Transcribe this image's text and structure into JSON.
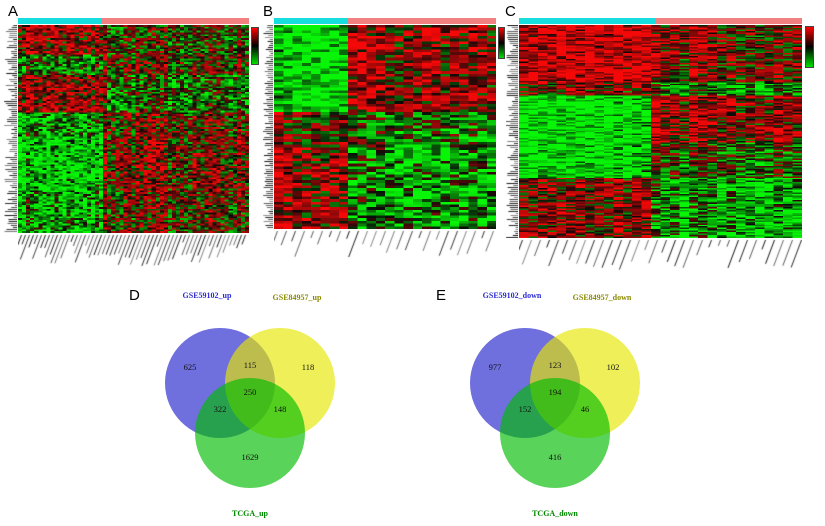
{
  "figure": {
    "background": "#ffffff"
  },
  "chart_data": [
    {
      "panel": "A",
      "type": "heatmap",
      "colors": {
        "up": "#ff0000",
        "zero": "#000000",
        "down": "#00e000",
        "group1_bar": "#17dede",
        "group2_bar": "#f28080"
      },
      "column_groups": {
        "group1_fraction": 0.36
      },
      "grid": {
        "rows": 112,
        "cols": 57
      },
      "row_blocks": [
        {
          "height_fraction": 0.14,
          "group1_bias": 0.45,
          "group2_bias": -0.05
        },
        {
          "height_fraction": 0.1,
          "group1_bias": -0.25,
          "group2_bias": 0.15
        },
        {
          "height_fraction": 0.18,
          "group1_bias": 0.5,
          "group2_bias": -0.2
        },
        {
          "height_fraction": 0.12,
          "group1_bias": -0.45,
          "group2_bias": 0.2
        },
        {
          "height_fraction": 0.26,
          "group1_bias": -0.7,
          "group2_bias": 0.3
        },
        {
          "height_fraction": 0.2,
          "group1_bias": -0.5,
          "group2_bias": 0.15
        }
      ]
    },
    {
      "panel": "B",
      "type": "heatmap",
      "colors": {
        "up": "#ff0000",
        "zero": "#000000",
        "down": "#00e000",
        "group1_bar": "#17dede",
        "group2_bar": "#f28080"
      },
      "column_groups": {
        "group1_fraction": 0.33
      },
      "grid": {
        "rows": 75,
        "cols": 24
      },
      "row_blocks": [
        {
          "height_fraction": 0.42,
          "group1_bias": -0.75,
          "group2_bias": 0.45
        },
        {
          "height_fraction": 0.18,
          "group1_bias": 0.35,
          "group2_bias": -0.3
        },
        {
          "height_fraction": 0.4,
          "group1_bias": 0.6,
          "group2_bias": -0.45
        }
      ]
    },
    {
      "panel": "C",
      "type": "heatmap",
      "colors": {
        "up": "#ff0000",
        "zero": "#000000",
        "down": "#00e000",
        "group1_bar": "#17dede",
        "group2_bar": "#f28080"
      },
      "column_groups": {
        "group1_fraction": 0.48
      },
      "grid": {
        "rows": 145,
        "cols": 30
      },
      "row_blocks": [
        {
          "height_fraction": 0.27,
          "group1_bias": 0.85,
          "group2_bias": 0.3
        },
        {
          "height_fraction": 0.06,
          "group1_bias": 0.4,
          "group2_bias": -0.4
        },
        {
          "height_fraction": 0.22,
          "group1_bias": -0.9,
          "group2_bias": 0.45
        },
        {
          "height_fraction": 0.17,
          "group1_bias": -0.8,
          "group2_bias": -0.1
        },
        {
          "height_fraction": 0.28,
          "group1_bias": 0.45,
          "group2_bias": -0.55
        }
      ]
    },
    {
      "panel": "D",
      "type": "venn",
      "sets": [
        {
          "name": "GSE59102_up",
          "label_color": "#2a2ad4",
          "fill": "#2222cc"
        },
        {
          "name": "GSE84957_up",
          "label_color": "#8a8a00",
          "fill": "#e6e600"
        },
        {
          "name": "TCGA_up",
          "label_color": "#008800",
          "fill": "#00bb00"
        }
      ],
      "regions": {
        "set1_only": 625,
        "set1_set2": 115,
        "set2_only": 118,
        "set1_set3": 322,
        "all_three": 250,
        "set2_set3": 148,
        "set3_only": 1629
      }
    },
    {
      "panel": "E",
      "type": "venn",
      "sets": [
        {
          "name": "GSE59102_down",
          "label_color": "#2a2ad4",
          "fill": "#2222cc"
        },
        {
          "name": "GSE84957_down",
          "label_color": "#8a8a00",
          "fill": "#e6e600"
        },
        {
          "name": "TCGA_down",
          "label_color": "#008800",
          "fill": "#00bb00"
        }
      ],
      "regions": {
        "set1_only": 977,
        "set1_set2": 123,
        "set2_only": 102,
        "set1_set3": 152,
        "all_three": 194,
        "set2_set3": 46,
        "set3_only": 416
      }
    }
  ]
}
